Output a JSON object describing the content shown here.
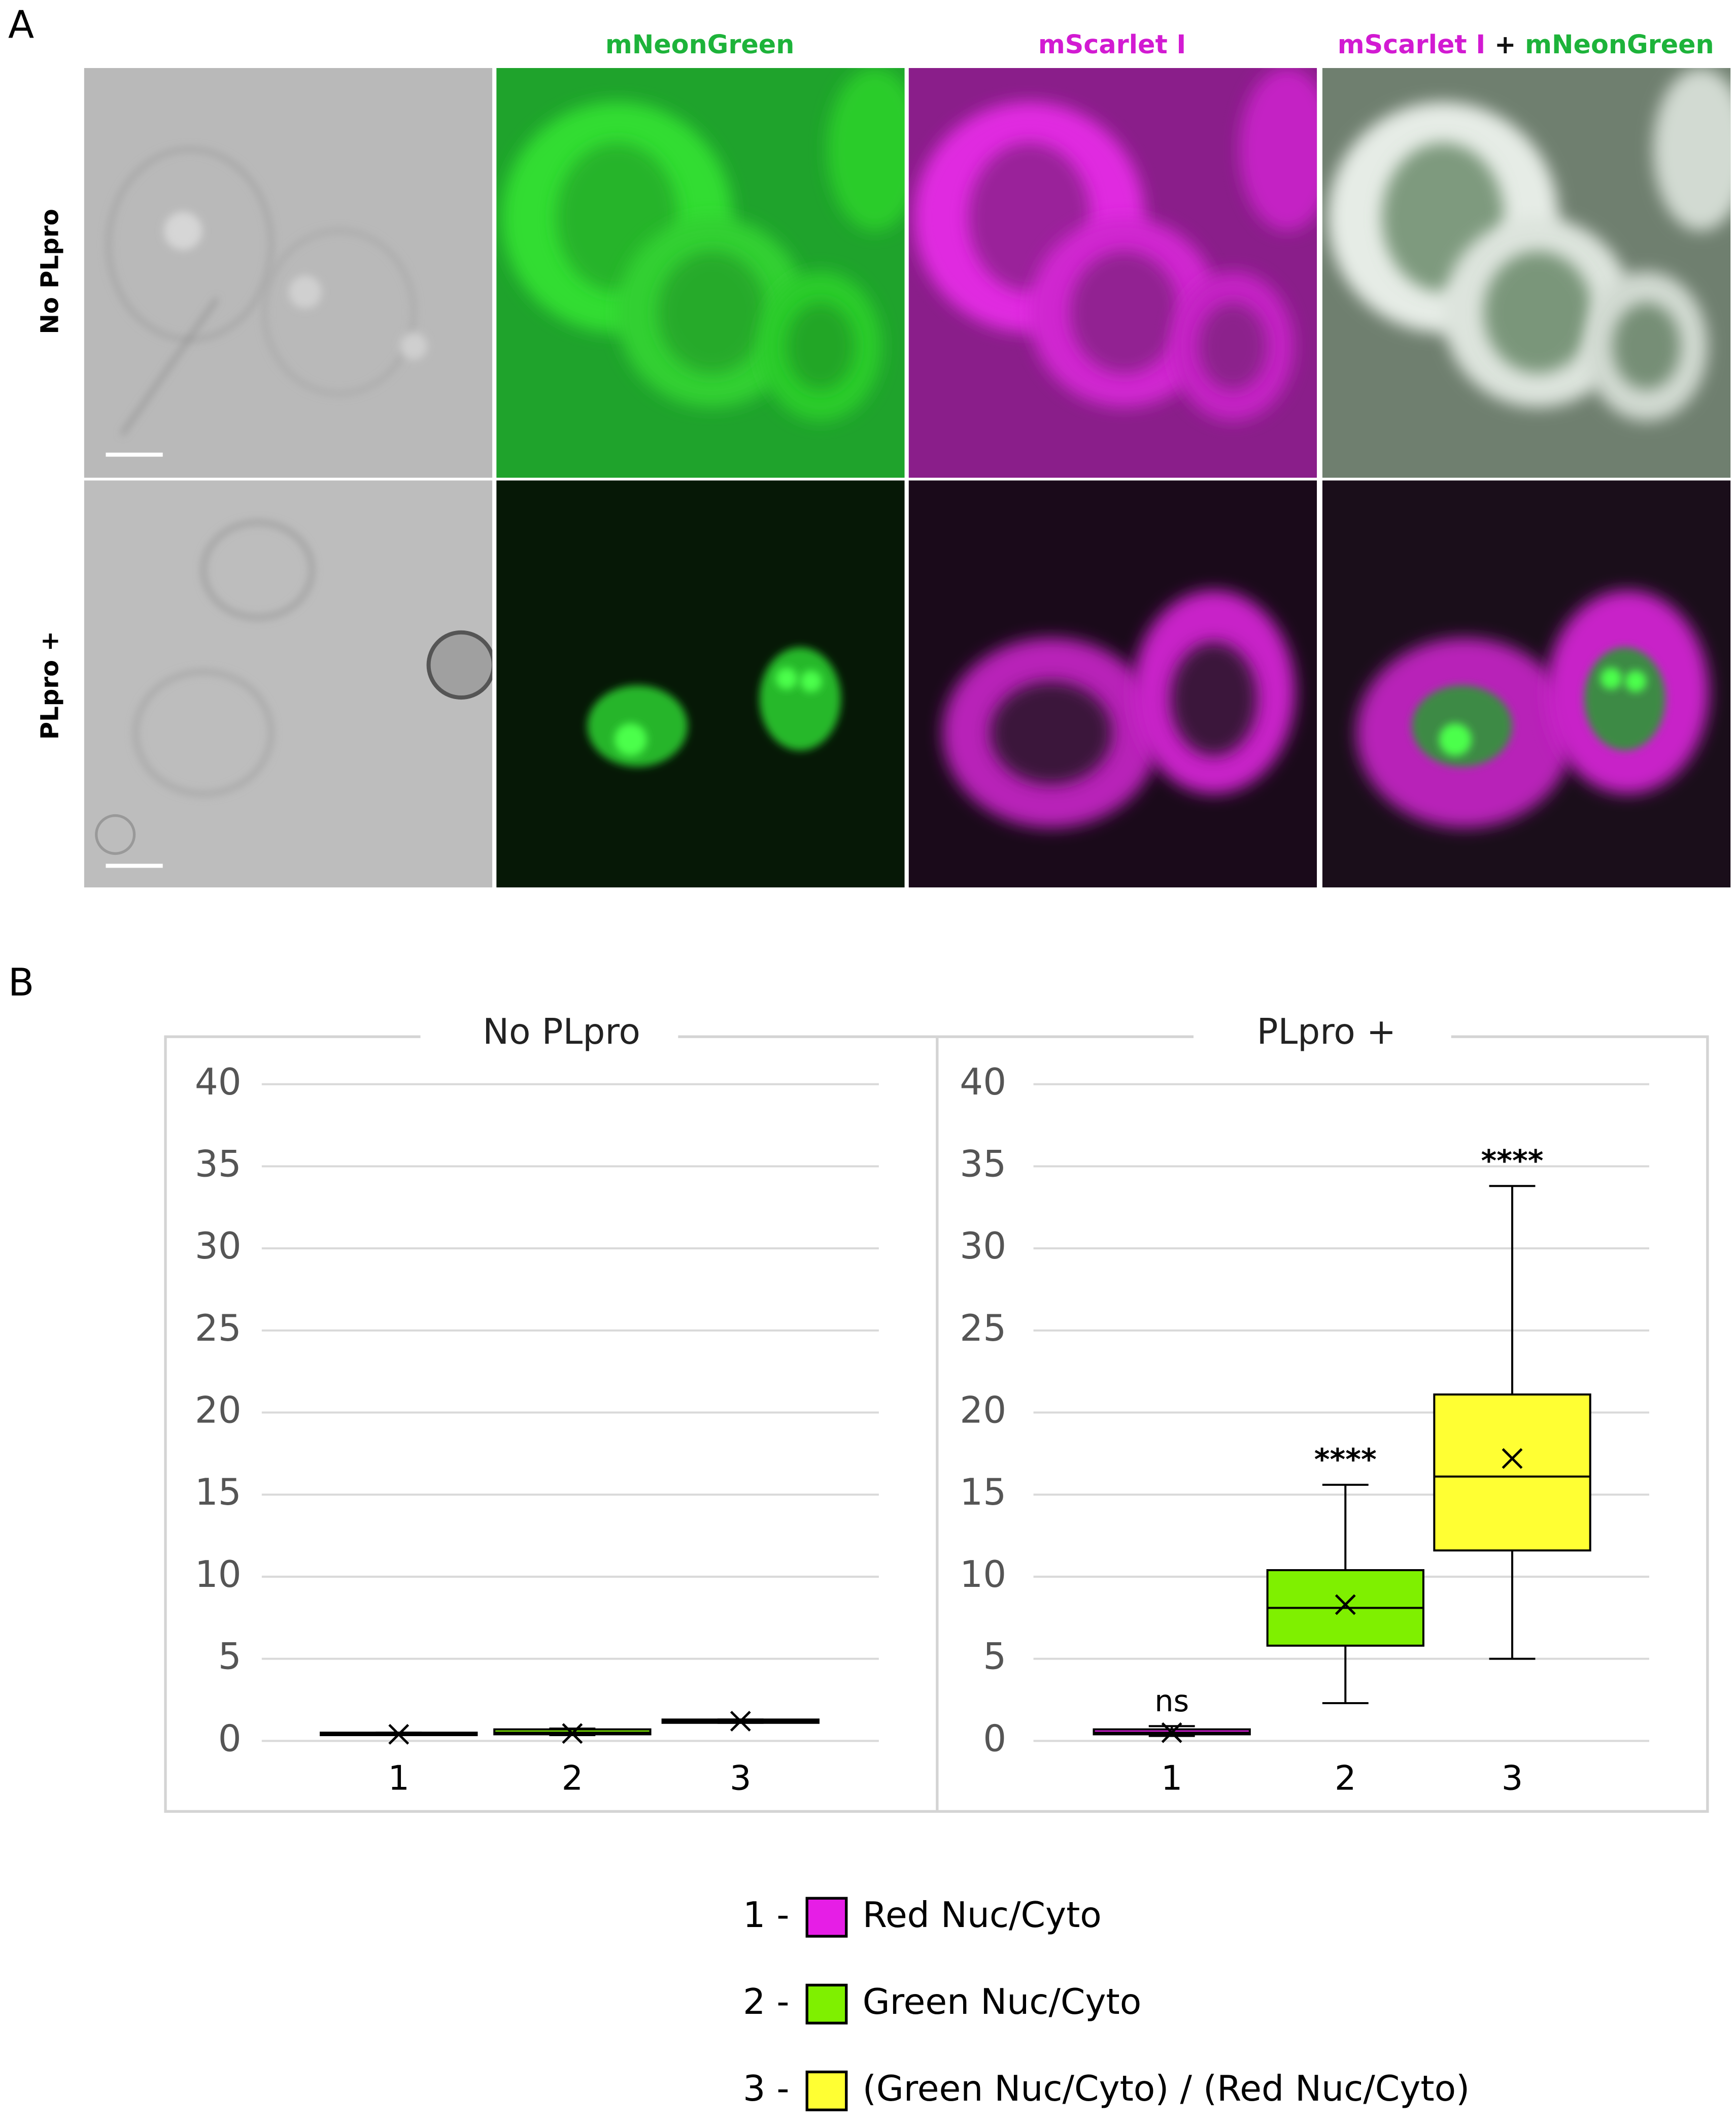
{
  "panel_labels": {
    "a": "A",
    "b": "B"
  },
  "image_grid": {
    "columns": [
      {
        "parts": [
          {
            "text": "mNeonGreen",
            "color": "#1db33a"
          }
        ]
      },
      {
        "parts": [
          {
            "text": "mScarlet I",
            "color": "#d21ad2"
          }
        ]
      },
      {
        "parts": [
          {
            "text": "mScarlet I",
            "color": "#d21ad2"
          },
          {
            "text": "+",
            "color": "#111111"
          },
          {
            "text": "mNeonGreen",
            "color": "#1db33a"
          }
        ]
      }
    ],
    "rows": [
      "No PLpro",
      "PLpro +"
    ]
  },
  "chart_data": [
    {
      "type": "box",
      "title": "No PLpro",
      "categories": [
        "1",
        "2",
        "3"
      ],
      "colors": [
        "#e61ee6",
        "#7ff000",
        "#ffff33"
      ],
      "boxes": [
        {
          "min": 0.35,
          "q1": 0.35,
          "median": 0.4,
          "q3": 0.5,
          "max": 0.5,
          "mean": 0.4
        },
        {
          "min": 0.35,
          "q1": 0.4,
          "median": 0.5,
          "q3": 0.7,
          "max": 0.75,
          "mean": 0.45
        },
        {
          "min": 1.1,
          "q1": 1.1,
          "median": 1.2,
          "q3": 1.3,
          "max": 1.3,
          "mean": 1.2
        }
      ],
      "ylim": [
        0,
        40
      ],
      "yticks": [
        0,
        5,
        10,
        15,
        20,
        25,
        30,
        35,
        40
      ],
      "grid": true
    },
    {
      "type": "box",
      "title": "PLpro +",
      "categories": [
        "1",
        "2",
        "3"
      ],
      "colors": [
        "#e61ee6",
        "#7ff000",
        "#ffff33"
      ],
      "boxes": [
        {
          "min": 0.3,
          "q1": 0.4,
          "median": 0.5,
          "q3": 0.7,
          "max": 0.9,
          "mean": 0.5
        },
        {
          "min": 2.3,
          "q1": 5.8,
          "median": 8.1,
          "q3": 10.4,
          "max": 15.6,
          "mean": 8.3
        },
        {
          "min": 5.0,
          "q1": 11.6,
          "median": 16.1,
          "q3": 21.1,
          "max": 33.8,
          "mean": 17.2
        }
      ],
      "annotations": [
        "ns",
        "****",
        "****"
      ],
      "ylim": [
        0,
        40
      ],
      "yticks": [
        0,
        5,
        10,
        15,
        20,
        25,
        30,
        35,
        40
      ],
      "grid": true
    }
  ],
  "legend": [
    {
      "key": "1 -",
      "label": "Red Nuc/Cyto"
    },
    {
      "key": "2 -",
      "label": "Green Nuc/Cyto"
    },
    {
      "key": "3 -",
      "label": "(Green Nuc/Cyto) / (Red Nuc/Cyto)"
    }
  ]
}
